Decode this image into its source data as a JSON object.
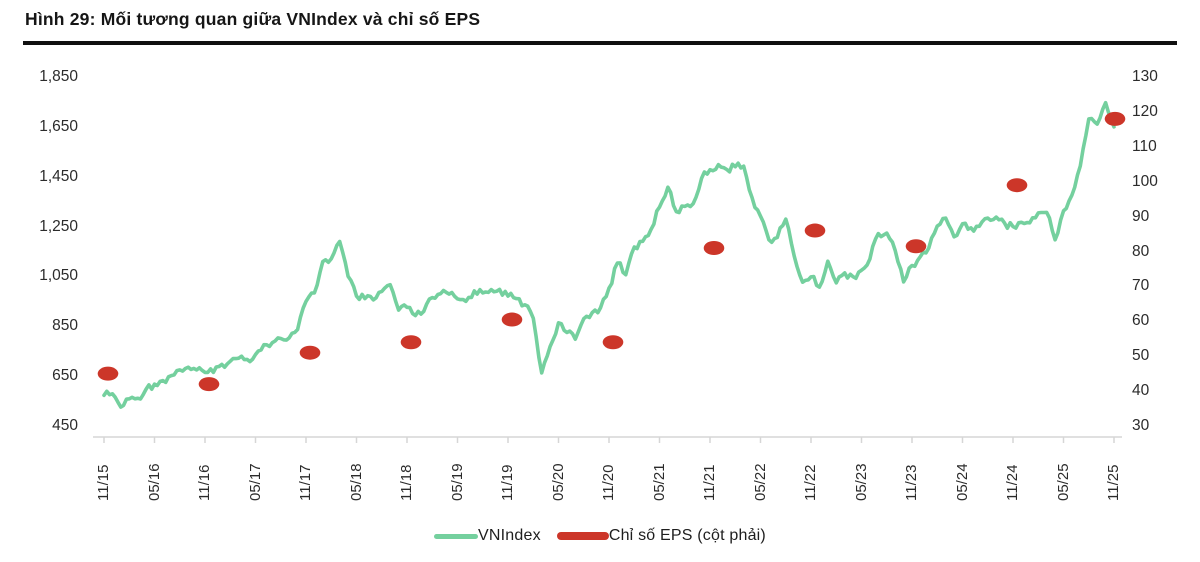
{
  "title": "Hình 29: Mối tương quan giữa VNIndex và chỉ số EPS",
  "colors": {
    "line_green": "#74D09E",
    "dot_red": "#CC3629",
    "axis_gray": "#D6D6D6",
    "tick_text": "#2B2B2B",
    "title_text": "#161616",
    "rule_black": "#101010"
  },
  "chart_data": {
    "type": "line",
    "title": "Hình 29: Mối tương quan giữa VNIndex và chỉ số EPS",
    "grid": false,
    "legend_position": "bottom",
    "x_tick_labels": [
      "11/15",
      "05/16",
      "11/16",
      "05/17",
      "11/17",
      "05/18",
      "11/18",
      "05/19",
      "11/19",
      "05/20",
      "11/20",
      "05/21",
      "11/21",
      "05/22",
      "11/22",
      "05/23",
      "11/23",
      "05/24",
      "11/24",
      "05/25",
      "11/25"
    ],
    "left_axis": {
      "min": 450,
      "max": 1850,
      "tick_step": 200,
      "tick_labels": [
        "1,850",
        "1,650",
        "1,450",
        "1,250",
        "1,050",
        "850",
        "650",
        "450"
      ]
    },
    "right_axis": {
      "min": 30,
      "max": 130,
      "tick_step": 10,
      "tick_labels": [
        "130",
        "120",
        "110",
        "100",
        "90",
        "80",
        "70",
        "60",
        "50",
        "40",
        "30"
      ]
    },
    "series": [
      {
        "name": "VNIndex",
        "type": "line",
        "axis": "left",
        "color": "#74D09E",
        "points": [
          [
            "11/15",
            573
          ],
          [
            "12/15",
            579
          ],
          [
            "01/16",
            526
          ],
          [
            "02/16",
            559
          ],
          [
            "03/16",
            561
          ],
          [
            "04/16",
            598
          ],
          [
            "05/16",
            618
          ],
          [
            "06/16",
            632
          ],
          [
            "07/16",
            652
          ],
          [
            "08/16",
            675
          ],
          [
            "09/16",
            686
          ],
          [
            "10/16",
            675
          ],
          [
            "11/16",
            665
          ],
          [
            "12/16",
            665
          ],
          [
            "01/17",
            697
          ],
          [
            "02/17",
            710
          ],
          [
            "03/17",
            722
          ],
          [
            "04/17",
            717
          ],
          [
            "05/17",
            737
          ],
          [
            "06/17",
            776
          ],
          [
            "07/17",
            784
          ],
          [
            "08/17",
            801
          ],
          [
            "09/17",
            804
          ],
          [
            "10/17",
            837
          ],
          [
            "11/17",
            950
          ],
          [
            "12/17",
            984
          ],
          [
            "01/18",
            1110
          ],
          [
            "02/18",
            1121
          ],
          [
            "03/18",
            1190
          ],
          [
            "04/18",
            1050
          ],
          [
            "05/18",
            971
          ],
          [
            "06/18",
            961
          ],
          [
            "07/18",
            956
          ],
          [
            "08/18",
            990
          ],
          [
            "09/18",
            1017
          ],
          [
            "10/18",
            915
          ],
          [
            "11/18",
            926
          ],
          [
            "12/18",
            893
          ],
          [
            "01/19",
            910
          ],
          [
            "02/19",
            965
          ],
          [
            "03/19",
            981
          ],
          [
            "04/19",
            979
          ],
          [
            "05/19",
            960
          ],
          [
            "06/19",
            950
          ],
          [
            "07/19",
            992
          ],
          [
            "08/19",
            984
          ],
          [
            "09/19",
            997
          ],
          [
            "10/19",
            998
          ],
          [
            "11/19",
            971
          ],
          [
            "12/19",
            961
          ],
          [
            "01/20",
            936
          ],
          [
            "02/20",
            882
          ],
          [
            "03/20",
            663
          ],
          [
            "04/20",
            769
          ],
          [
            "05/20",
            864
          ],
          [
            "06/20",
            825
          ],
          [
            "07/20",
            798
          ],
          [
            "08/20",
            881
          ],
          [
            "09/20",
            905
          ],
          [
            "10/20",
            925
          ],
          [
            "11/20",
            1003
          ],
          [
            "12/20",
            1104
          ],
          [
            "01/21",
            1057
          ],
          [
            "02/21",
            1168
          ],
          [
            "03/21",
            1191
          ],
          [
            "04/21",
            1239
          ],
          [
            "05/21",
            1328
          ],
          [
            "06/21",
            1408
          ],
          [
            "07/21",
            1310
          ],
          [
            "08/21",
            1331
          ],
          [
            "09/21",
            1342
          ],
          [
            "10/21",
            1444
          ],
          [
            "11/21",
            1478
          ],
          [
            "12/21",
            1498
          ],
          [
            "01/22",
            1479
          ],
          [
            "02/22",
            1490
          ],
          [
            "03/22",
            1492
          ],
          [
            "04/22",
            1366
          ],
          [
            "05/22",
            1292
          ],
          [
            "06/22",
            1197
          ],
          [
            "07/22",
            1206
          ],
          [
            "08/22",
            1280
          ],
          [
            "09/22",
            1132
          ],
          [
            "10/22",
            1027
          ],
          [
            "11/22",
            1048
          ],
          [
            "12/22",
            1007
          ],
          [
            "01/23",
            1111
          ],
          [
            "02/23",
            1024
          ],
          [
            "03/23",
            1064
          ],
          [
            "04/23",
            1049
          ],
          [
            "05/23",
            1075
          ],
          [
            "06/23",
            1120
          ],
          [
            "07/23",
            1222
          ],
          [
            "08/23",
            1224
          ],
          [
            "09/23",
            1154
          ],
          [
            "10/23",
            1028
          ],
          [
            "11/23",
            1094
          ],
          [
            "12/23",
            1130
          ],
          [
            "01/24",
            1164
          ],
          [
            "02/24",
            1252
          ],
          [
            "03/24",
            1284
          ],
          [
            "04/24",
            1209
          ],
          [
            "05/24",
            1261
          ],
          [
            "06/24",
            1245
          ],
          [
            "07/24",
            1251
          ],
          [
            "08/24",
            1284
          ],
          [
            "09/24",
            1288
          ],
          [
            "10/24",
            1264
          ],
          [
            "11/24",
            1250
          ],
          [
            "12/24",
            1267
          ],
          [
            "01/25",
            1265
          ],
          [
            "02/25",
            1305
          ],
          [
            "03/25",
            1307
          ],
          [
            "04/25",
            1197
          ],
          [
            "05/25",
            1313
          ],
          [
            "06/25",
            1376
          ],
          [
            "07/25",
            1493
          ],
          [
            "08/25",
            1682
          ],
          [
            "09/25",
            1661
          ],
          [
            "10/25",
            1747
          ],
          [
            "11/25",
            1650
          ]
        ]
      },
      {
        "name": "Chỉ số EPS (cột phải)",
        "type": "scatter",
        "axis": "right",
        "color": "#CC3629",
        "points": [
          [
            "11/15",
            45
          ],
          [
            "11/16",
            42
          ],
          [
            "11/17",
            51
          ],
          [
            "11/18",
            54
          ],
          [
            "11/19",
            60.5
          ],
          [
            "11/20",
            54
          ],
          [
            "11/21",
            81
          ],
          [
            "11/22",
            86
          ],
          [
            "11/23",
            81.5
          ],
          [
            "11/24",
            99
          ],
          [
            "11/25",
            118
          ]
        ]
      }
    ]
  }
}
